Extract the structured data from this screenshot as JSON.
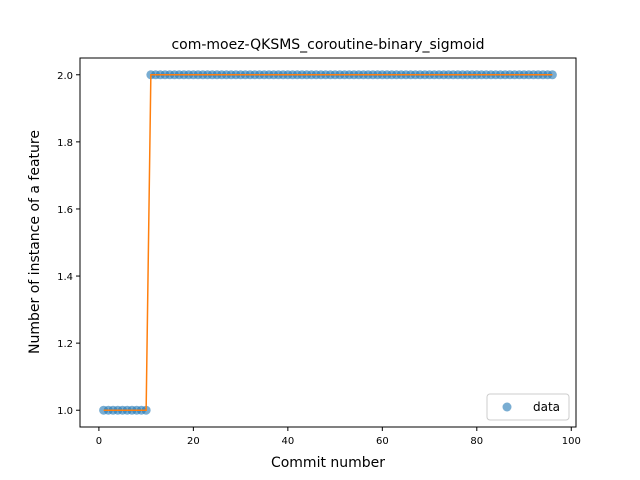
{
  "chart_data": {
    "type": "scatter",
    "title": "com-moez-QKSMS_coroutine-binary_sigmoid",
    "xlabel": "Commit number",
    "ylabel": "Number of instance of a feature",
    "xlim": [
      -4,
      101
    ],
    "ylim": [
      0.95,
      2.05
    ],
    "xticks": [
      0,
      20,
      40,
      60,
      80,
      100
    ],
    "yticks": [
      1.0,
      1.2,
      1.4,
      1.6,
      1.8,
      2.0
    ],
    "grid": false,
    "legend": {
      "placement": "lower-right",
      "entries": [
        "data"
      ]
    },
    "series": [
      {
        "name": "data",
        "kind": "scatter",
        "color": "#1f77b4",
        "x": [
          1,
          2,
          3,
          4,
          5,
          6,
          7,
          8,
          9,
          10,
          11,
          12,
          13,
          14,
          15,
          16,
          17,
          18,
          19,
          20,
          21,
          22,
          23,
          24,
          25,
          26,
          27,
          28,
          29,
          30,
          31,
          32,
          33,
          34,
          35,
          36,
          37,
          38,
          39,
          40,
          41,
          42,
          43,
          44,
          45,
          46,
          47,
          48,
          49,
          50,
          51,
          52,
          53,
          54,
          55,
          56,
          57,
          58,
          59,
          60,
          61,
          62,
          63,
          64,
          65,
          66,
          67,
          68,
          69,
          70,
          71,
          72,
          73,
          74,
          75,
          76,
          77,
          78,
          79,
          80,
          81,
          82,
          83,
          84,
          85,
          86,
          87,
          88,
          89,
          90,
          91,
          92,
          93,
          94,
          95,
          96
        ],
        "y": [
          1,
          1,
          1,
          1,
          1,
          1,
          1,
          1,
          1,
          1,
          2,
          2,
          2,
          2,
          2,
          2,
          2,
          2,
          2,
          2,
          2,
          2,
          2,
          2,
          2,
          2,
          2,
          2,
          2,
          2,
          2,
          2,
          2,
          2,
          2,
          2,
          2,
          2,
          2,
          2,
          2,
          2,
          2,
          2,
          2,
          2,
          2,
          2,
          2,
          2,
          2,
          2,
          2,
          2,
          2,
          2,
          2,
          2,
          2,
          2,
          2,
          2,
          2,
          2,
          2,
          2,
          2,
          2,
          2,
          2,
          2,
          2,
          2,
          2,
          2,
          2,
          2,
          2,
          2,
          2,
          2,
          2,
          2,
          2,
          2,
          2,
          2,
          2,
          2,
          2,
          2,
          2,
          2,
          2,
          2,
          2
        ]
      },
      {
        "kind": "line",
        "color": "#ff7f0e",
        "x": [
          1,
          10,
          11,
          96
        ],
        "y": [
          1,
          1,
          2,
          2
        ]
      }
    ]
  }
}
